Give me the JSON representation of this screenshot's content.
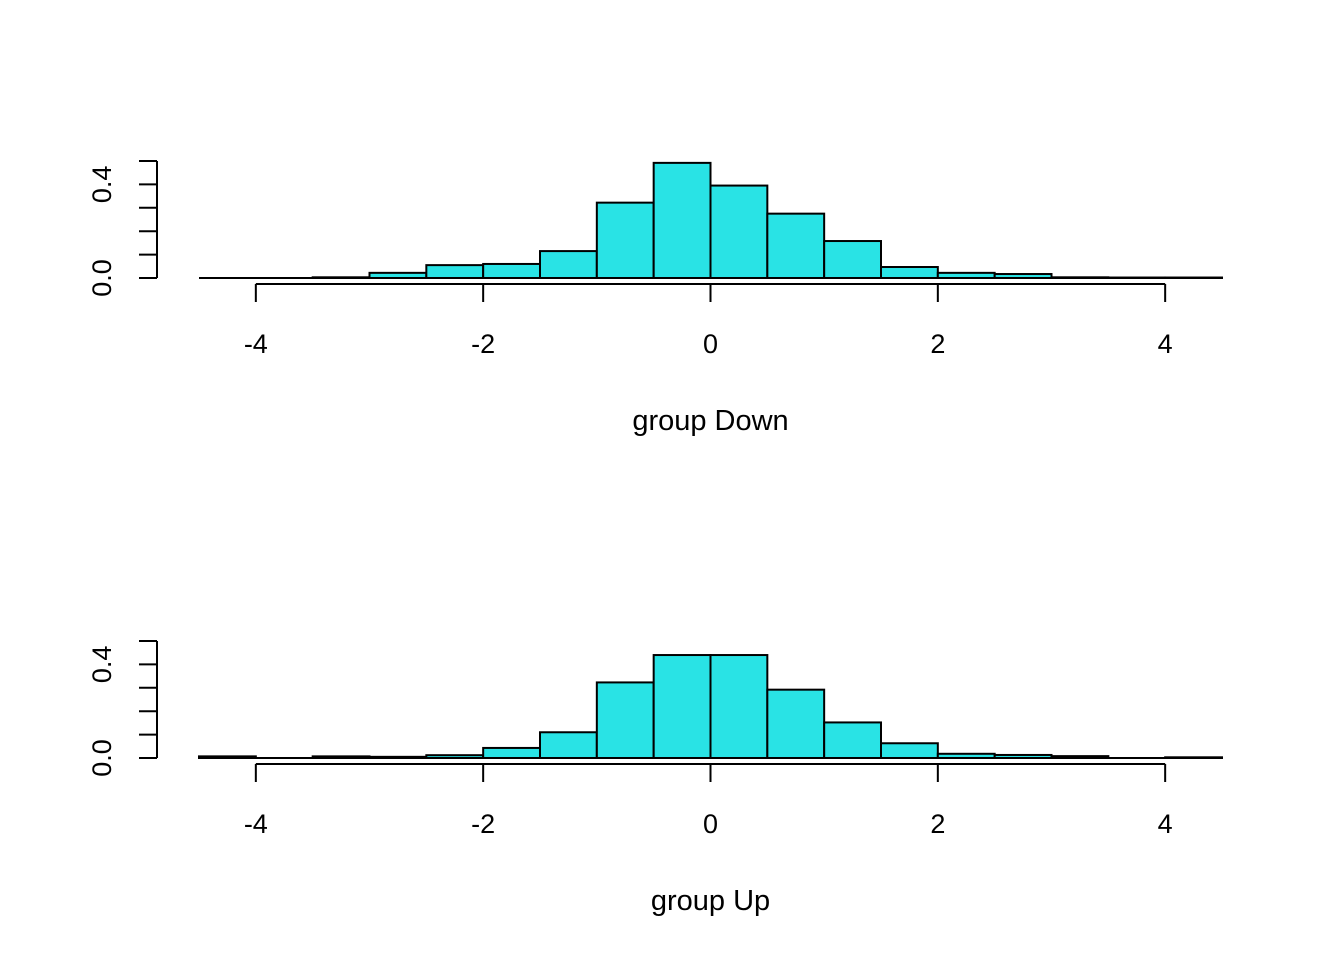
{
  "chart_data": [
    {
      "type": "bar",
      "subtype": "histogram",
      "xlabel": "group Down",
      "ylabel": "",
      "title": "",
      "bar_color": "#29E3E5",
      "bin_edges": [
        -4.5,
        -4.0,
        -3.5,
        -3.0,
        -2.5,
        -2.0,
        -1.5,
        -1.0,
        -0.5,
        0.0,
        0.5,
        1.0,
        1.5,
        2.0,
        2.5,
        3.0,
        3.5,
        4.0,
        4.5
      ],
      "values": [
        0.0,
        0.0,
        0.003,
        0.022,
        0.055,
        0.06,
        0.115,
        0.322,
        0.492,
        0.395,
        0.275,
        0.158,
        0.047,
        0.022,
        0.017,
        0.003,
        0.002,
        0.002
      ],
      "xlim": [
        -4.5,
        4.5
      ],
      "ylim": [
        0,
        0.5
      ],
      "x_ticks": [
        -4,
        -2,
        0,
        2,
        4
      ],
      "x_tick_labels": [
        "-4",
        "-2",
        "0",
        "2",
        "4"
      ],
      "y_ticks": [
        0.0,
        0.1,
        0.2,
        0.3,
        0.4,
        0.5
      ],
      "y_tick_labels": [
        "0.0",
        "",
        "",
        "",
        "0.4",
        ""
      ],
      "grid": false,
      "legend": "none"
    },
    {
      "type": "bar",
      "subtype": "histogram",
      "xlabel": "group Up",
      "ylabel": "",
      "title": "",
      "bar_color": "#29E3E5",
      "bin_edges": [
        -4.5,
        -4.0,
        -3.5,
        -3.0,
        -2.5,
        -2.0,
        -1.5,
        -1.0,
        -0.5,
        0.0,
        0.5,
        1.0,
        1.5,
        2.0,
        2.5,
        3.0,
        3.5,
        4.0,
        4.5
      ],
      "values": [
        0.007,
        0.0,
        0.007,
        0.005,
        0.012,
        0.043,
        0.11,
        0.323,
        0.44,
        0.44,
        0.292,
        0.152,
        0.063,
        0.018,
        0.013,
        0.008,
        0.0,
        0.003
      ],
      "xlim": [
        -4.5,
        4.5
      ],
      "ylim": [
        0,
        0.5
      ],
      "x_ticks": [
        -4,
        -2,
        0,
        2,
        4
      ],
      "x_tick_labels": [
        "-4",
        "-2",
        "0",
        "2",
        "4"
      ],
      "y_ticks": [
        0.0,
        0.1,
        0.2,
        0.3,
        0.4,
        0.5
      ],
      "y_tick_labels": [
        "0.0",
        "",
        "",
        "",
        "0.4",
        ""
      ],
      "grid": false,
      "legend": "none"
    }
  ]
}
